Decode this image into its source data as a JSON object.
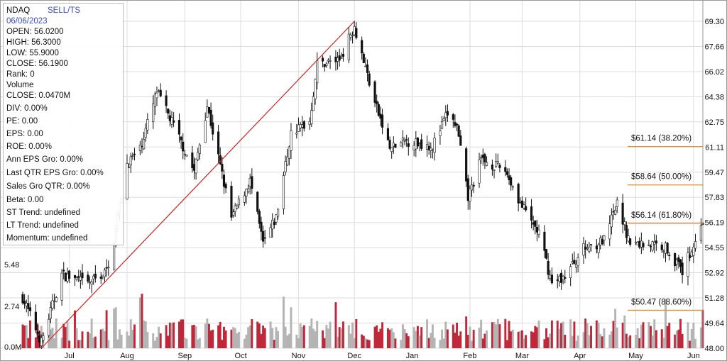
{
  "info": {
    "symbol": "NDAQ",
    "signal": "SELL/TS",
    "date": "06/06/2023",
    "rows": [
      "OPEN: 56.0200",
      "HIGH: 56.3000",
      "LOW: 55.9000",
      "CLOSE: 56.1900",
      "Rank: 0",
      "Volume",
      "CLOSE: 0.0470M",
      "DIV: 0.00%",
      "PE: 0.00",
      "EPS: 0.00",
      "ROE: 0.00%",
      "Ann EPS Gro: 0.00%",
      "Last QTR EPS Gro: 0.00%",
      "Sales Gro QTR: 0.00%",
      "Beta: 0.00",
      "ST Trend: undefined",
      "LT Trend: undefined",
      "Momentum: undefined"
    ]
  },
  "colors": {
    "candle": "#111111",
    "volume_down": "#c0283a",
    "volume_up": "#b4b4b4",
    "trendline": "#d42020",
    "fib_line": "#f08c28",
    "grid": "#dddddd"
  },
  "chart_data": {
    "type": "candlestick",
    "y_ticks": [
      "69.30",
      "67.66",
      "66.02",
      "64.38",
      "62.75",
      "61.11",
      "59.47",
      "57.83",
      "56.19",
      "54.55",
      "52.92",
      "51.28",
      "49.64",
      "48.00"
    ],
    "ylim": [
      48.0,
      69.3
    ],
    "x_tick_labels": [
      "Jul",
      "Aug",
      "Sep",
      "Oct",
      "Nov",
      "Dec",
      "Jan",
      "Feb",
      "Mar",
      "Apr",
      "May",
      "Jun"
    ],
    "volume_tick_labels": [
      "5.48",
      "2.74",
      "0.0M"
    ],
    "fibonacci_levels": [
      {
        "label": "$61.14 (38.20%)",
        "value": 61.14
      },
      {
        "label": "$58.64 (50.00%)",
        "value": 58.64
      },
      {
        "label": "$56.14 (61.80%)",
        "value": 56.14
      },
      {
        "label": "$50.47 (88.60%)",
        "value": 50.47
      }
    ],
    "trendline": {
      "from": {
        "date": "2022-06-16",
        "price": 48.0
      },
      "to": {
        "date": "2022-12-01",
        "price": 69.3
      }
    },
    "price_path": [
      {
        "date": "2022-06-06",
        "close": 51.3
      },
      {
        "date": "2022-06-16",
        "close": 48.4
      },
      {
        "date": "2022-06-27",
        "close": 52.8
      },
      {
        "date": "2022-07-11",
        "close": 52.2
      },
      {
        "date": "2022-07-22",
        "close": 53.1
      },
      {
        "date": "2022-08-01",
        "close": 60.0
      },
      {
        "date": "2022-08-08",
        "close": 61.0
      },
      {
        "date": "2022-08-17",
        "close": 64.7
      },
      {
        "date": "2022-08-26",
        "close": 62.5
      },
      {
        "date": "2022-09-06",
        "close": 59.5
      },
      {
        "date": "2022-09-13",
        "close": 63.8
      },
      {
        "date": "2022-09-26",
        "close": 56.5
      },
      {
        "date": "2022-10-06",
        "close": 58.9
      },
      {
        "date": "2022-10-13",
        "close": 54.8
      },
      {
        "date": "2022-10-20",
        "close": 56.5
      },
      {
        "date": "2022-10-28",
        "close": 62.0
      },
      {
        "date": "2022-11-07",
        "close": 62.8
      },
      {
        "date": "2022-11-11",
        "close": 66.5
      },
      {
        "date": "2022-11-23",
        "close": 66.8
      },
      {
        "date": "2022-12-01",
        "close": 69.0
      },
      {
        "date": "2022-12-12",
        "close": 64.0
      },
      {
        "date": "2022-12-20",
        "close": 61.0
      },
      {
        "date": "2022-12-29",
        "close": 61.5
      },
      {
        "date": "2023-01-12",
        "close": 61.2
      },
      {
        "date": "2023-01-20",
        "close": 63.3
      },
      {
        "date": "2023-01-25",
        "close": 62.4
      },
      {
        "date": "2023-01-31",
        "close": 57.8
      },
      {
        "date": "2023-02-07",
        "close": 60.3
      },
      {
        "date": "2023-02-20",
        "close": 59.6
      },
      {
        "date": "2023-03-01",
        "close": 57.2
      },
      {
        "date": "2023-03-10",
        "close": 55.5
      },
      {
        "date": "2023-03-17",
        "close": 52.2
      },
      {
        "date": "2023-03-24",
        "close": 52.7
      },
      {
        "date": "2023-04-03",
        "close": 54.5
      },
      {
        "date": "2023-04-14",
        "close": 55.0
      },
      {
        "date": "2023-04-21",
        "close": 57.4
      },
      {
        "date": "2023-04-28",
        "close": 54.8
      },
      {
        "date": "2023-05-08",
        "close": 54.8
      },
      {
        "date": "2023-05-17",
        "close": 54.6
      },
      {
        "date": "2023-05-26",
        "close": 53.0
      },
      {
        "date": "2023-06-06",
        "close": 56.2
      }
    ]
  }
}
